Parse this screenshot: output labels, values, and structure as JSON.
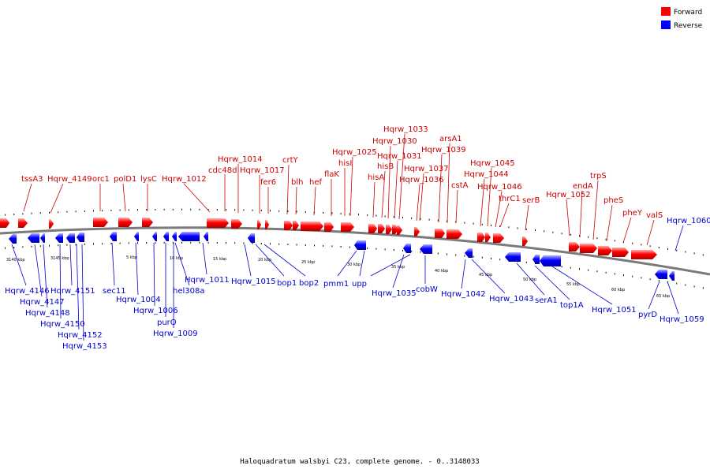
{
  "caption": "Haloquadratum walsbyi C23, complete genome. - 0..3148033",
  "legend": [
    {
      "label": "Forward",
      "color": "#ff0000"
    },
    {
      "label": "Reverse",
      "color": "#0000ff"
    }
  ],
  "colors": {
    "forward": "#ff0000",
    "reverse": "#0000ff",
    "backbone": "#808080"
  },
  "scale_labels": [
    "3140 kbp",
    "3145 kbp",
    "5 kbp",
    "10 kbp",
    "15 kbp",
    "20 kbp",
    "25 kbp",
    "30 kbp",
    "35 kbp",
    "40 kbp",
    "45 kbp",
    "50 kbp",
    "55 kbp",
    "60 kbp",
    "65 kbp"
  ],
  "forward_genes": [
    "tssA3",
    "Hqrw_4149",
    "orc1",
    "polD1",
    "lysC",
    "Hqrw_1012",
    "cdc48d",
    "Hqrw_1014",
    "Hqrw_1017",
    "fer6",
    "crtY",
    "blh",
    "hef",
    "flaK",
    "hisI",
    "Hqrw_1025",
    "hisA",
    "hisB",
    "Hqrw_1030",
    "Hqrw_1031",
    "Hqrw_1033",
    "Hqrw_1036",
    "Hqrw_1037",
    "Hqrw_1039",
    "arsA1",
    "cstA",
    "Hqrw_1044",
    "Hqrw_1045",
    "Hqrw_1046",
    "thrC1",
    "serB",
    "Hqrw_1052",
    "endA",
    "trpS",
    "pheS",
    "pheY",
    "valS"
  ],
  "reverse_genes": [
    "Hqrw_4146",
    "Hqrw_4147",
    "Hqrw_4148",
    "Hqrw_4150",
    "Hqrw_4151",
    "Hqrw_4152",
    "Hqrw_4153",
    "sec11",
    "Hqrw_1004",
    "Hqrw_1006",
    "purO",
    "Hqrw_1009",
    "hel308a",
    "Hqrw_1011",
    "Hqrw_1015",
    "bop1",
    "bop2",
    "pmm1",
    "upp",
    "Hqrw_1035",
    "cobW",
    "Hqrw_1042",
    "Hqrw_1043",
    "serA1",
    "top1A",
    "Hqrw_1051",
    "pyrD",
    "Hqrw_1059",
    "Hqrw_1060"
  ]
}
